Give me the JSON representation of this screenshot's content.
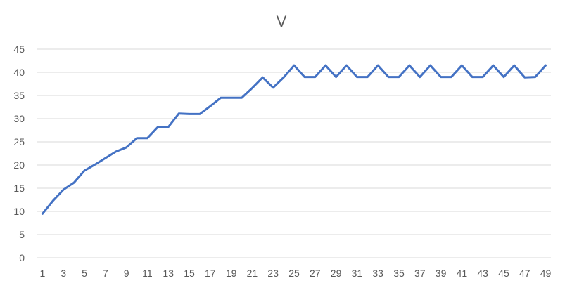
{
  "chart_data": {
    "type": "line",
    "title": "V",
    "xlabel": "",
    "ylabel": "",
    "x": [
      1,
      2,
      3,
      4,
      5,
      6,
      7,
      8,
      9,
      10,
      11,
      12,
      13,
      14,
      15,
      16,
      17,
      18,
      19,
      20,
      21,
      22,
      23,
      24,
      25,
      26,
      27,
      28,
      29,
      30,
      31,
      32,
      33,
      34,
      35,
      36,
      37,
      38,
      39,
      40,
      41,
      42,
      43,
      44,
      45,
      46,
      47,
      48,
      49
    ],
    "x_tick_labels": [
      "1",
      "3",
      "5",
      "7",
      "9",
      "11",
      "13",
      "15",
      "17",
      "19",
      "21",
      "23",
      "25",
      "27",
      "29",
      "31",
      "33",
      "35",
      "37",
      "39",
      "41",
      "43",
      "45",
      "47",
      "49"
    ],
    "y_tick_labels": [
      "0",
      "5",
      "10",
      "15",
      "20",
      "25",
      "30",
      "35",
      "40",
      "45"
    ],
    "ylim": [
      0,
      45
    ],
    "series": [
      {
        "values": [
          9.5,
          12.3,
          14.7,
          16.2,
          18.8,
          20.1,
          21.5,
          22.9,
          23.8,
          25.8,
          25.8,
          28.2,
          28.2,
          31.1,
          31.0,
          31.0,
          32.7,
          34.5,
          34.5,
          34.5,
          36.6,
          38.9,
          36.7,
          38.9,
          41.5,
          39.0,
          39.0,
          41.5,
          39.0,
          41.5,
          39.0,
          39.0,
          41.5,
          39.0,
          39.0,
          41.5,
          39.0,
          41.5,
          39.0,
          39.0,
          41.5,
          39.0,
          39.0,
          41.5,
          39.0,
          41.5,
          38.9,
          39.0,
          41.5
        ],
        "color": "#4472c4"
      }
    ],
    "grid": true,
    "legend": "none"
  }
}
